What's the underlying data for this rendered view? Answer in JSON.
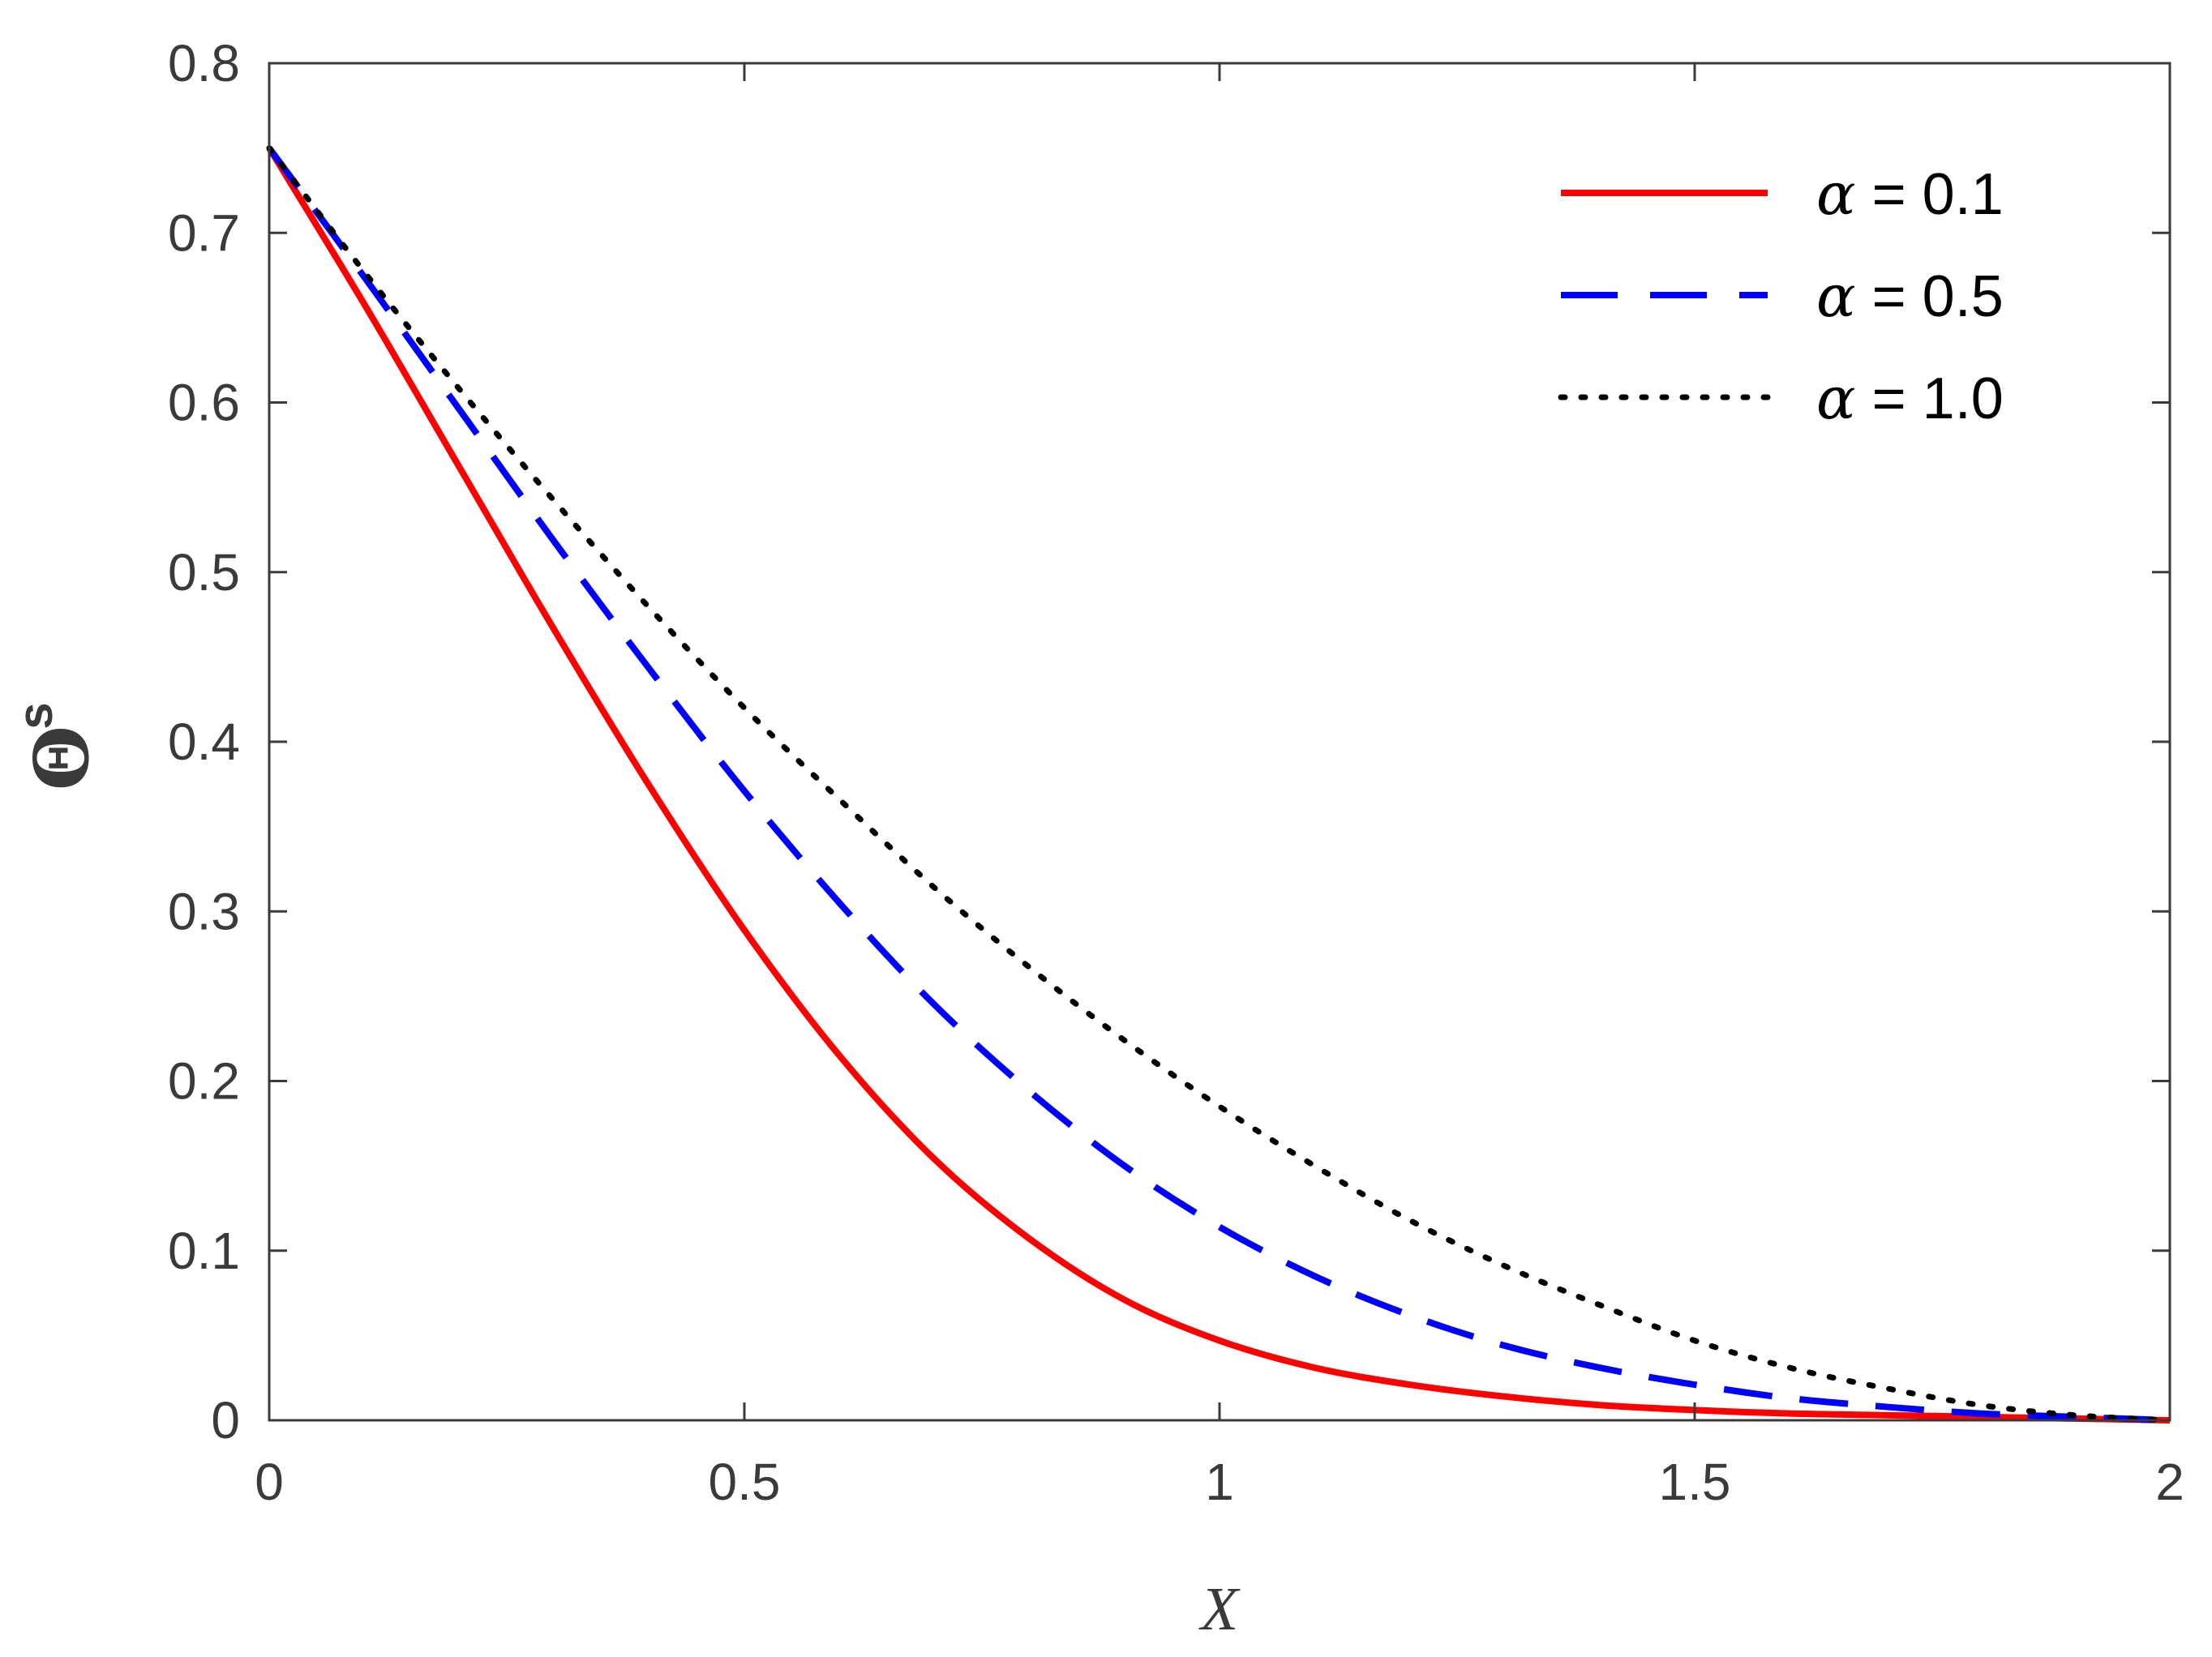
{
  "chart_data": {
    "type": "line",
    "title": "",
    "xlabel": "X",
    "ylabel": "Θ",
    "ylabel_superscript": "s",
    "xlim": [
      0,
      2
    ],
    "ylim": [
      0,
      0.8
    ],
    "xticks": [
      0,
      0.5,
      1,
      1.5,
      2
    ],
    "xtick_labels": [
      "0",
      "0.5",
      "1",
      "1.5",
      "2"
    ],
    "yticks": [
      0,
      0.1,
      0.2,
      0.3,
      0.4,
      0.5,
      0.6,
      0.7,
      0.8
    ],
    "ytick_labels": [
      "0",
      "0.1",
      "0.2",
      "0.3",
      "0.4",
      "0.5",
      "0.6",
      "0.7",
      "0.8"
    ],
    "grid": false,
    "legend_position": "top-right",
    "x": [
      0,
      0.1,
      0.2,
      0.3,
      0.4,
      0.5,
      0.6,
      0.7,
      0.8,
      0.9,
      1.0,
      1.1,
      1.2,
      1.3,
      1.4,
      1.5,
      1.6,
      1.7,
      1.8,
      1.9,
      2.0
    ],
    "series": [
      {
        "name": "α = 0.1",
        "symbol": "α",
        "value_text": " = 0.1",
        "color": "#ff0000",
        "style": "solid",
        "values": [
          0.75,
          0.658,
          0.562,
          0.466,
          0.374,
          0.289,
          0.215,
          0.154,
          0.107,
          0.071,
          0.047,
          0.031,
          0.021,
          0.014,
          0.009,
          0.006,
          0.004,
          0.003,
          0.002,
          0.001,
          0.0
        ]
      },
      {
        "name": "α = 0.5",
        "symbol": "α",
        "value_text": " = 0.5",
        "color": "#0000ff",
        "style": "dashed",
        "values": [
          0.75,
          0.674,
          0.596,
          0.518,
          0.443,
          0.371,
          0.305,
          0.245,
          0.194,
          0.15,
          0.114,
          0.085,
          0.062,
          0.044,
          0.031,
          0.021,
          0.013,
          0.008,
          0.004,
          0.002,
          0.0
        ]
      },
      {
        "name": "α = 1.0",
        "symbol": "α",
        "value_text": " = 1.0",
        "color": "#000000",
        "style": "dotted",
        "values": [
          0.75,
          0.677,
          0.608,
          0.542,
          0.479,
          0.42,
          0.366,
          0.314,
          0.267,
          0.224,
          0.185,
          0.15,
          0.118,
          0.091,
          0.068,
          0.047,
          0.031,
          0.019,
          0.009,
          0.003,
          0.0
        ]
      }
    ]
  }
}
